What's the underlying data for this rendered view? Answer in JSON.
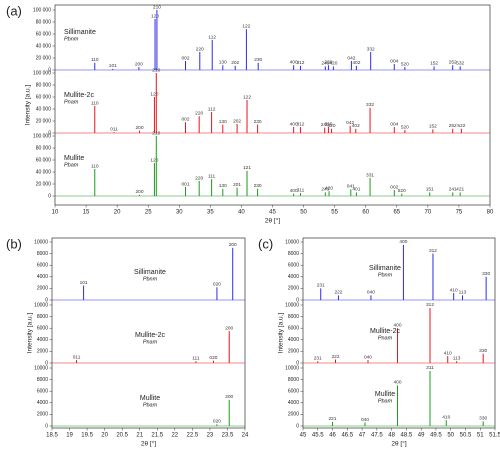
{
  "chart_data": [
    {
      "type": "peaks",
      "title": "(a)",
      "xlabel": "2θ [°]",
      "ylabel": "Intensity [a.u.]",
      "xlim": [
        10,
        80
      ],
      "xticks": [
        10,
        15,
        20,
        25,
        30,
        35,
        40,
        45,
        50,
        55,
        60,
        65,
        70,
        75,
        80
      ],
      "series": [
        {
          "name": "Sillimanite",
          "subtitle": "Pbnm",
          "color": "#2b2bf0",
          "ylim": [
            0,
            100000
          ],
          "yticks": [
            0,
            {
              "value": 20000,
              "label": "20 000"
            },
            {
              "value": 40000,
              "label": "40 000"
            },
            {
              "value": 60000,
              "label": "60 000"
            },
            {
              "value": 80000,
              "label": "80 000"
            },
            {
              "value": 100000,
              "label": "100 000"
            }
          ],
          "x": [
            16.4,
            19.3,
            23.5,
            26.1,
            26.4,
            31,
            33.3,
            35.3,
            37,
            39,
            40.8,
            42.7,
            48.4,
            49.5,
            53.5,
            54,
            54.8,
            57.7,
            58.5,
            60.8,
            64.6,
            66.3,
            71,
            74,
            75.2
          ],
          "values": [
            12000,
            2000,
            5000,
            85000,
            100000,
            15000,
            30000,
            50000,
            8000,
            7000,
            68000,
            12000,
            8000,
            7000,
            6000,
            8000,
            6000,
            15000,
            7000,
            30000,
            10000,
            5000,
            6000,
            8000,
            6000
          ],
          "labels": [
            "110",
            "101",
            "200",
            "120",
            "210",
            "002",
            "220",
            "112",
            "130",
            "202",
            "122",
            "230",
            "400",
            "312",
            "240",
            "330",
            "420",
            "042",
            "402",
            "332",
            "004",
            "520",
            "152",
            "252",
            "532"
          ]
        },
        {
          "name": "Mullite-2c",
          "subtitle": "Pnam",
          "color": "#e8141c",
          "ylim": [
            0,
            100000
          ],
          "yticks": [
            0,
            {
              "value": 20000,
              "label": "20 000"
            },
            {
              "value": 40000,
              "label": "40 000"
            },
            {
              "value": 60000,
              "label": "60 000"
            },
            {
              "value": 80000,
              "label": "80 000"
            },
            {
              "value": 100000,
              "label": "100 000"
            }
          ],
          "x": [
            16.4,
            19.5,
            23.6,
            26,
            26.3,
            31,
            33.2,
            35.2,
            37,
            39.3,
            40.9,
            42.6,
            48.4,
            49.5,
            53.4,
            54,
            54.5,
            57.5,
            58.4,
            60.7,
            64.6,
            66.3,
            70.8,
            74,
            75.4
          ],
          "values": [
            45000,
            1500,
            4000,
            60000,
            100000,
            18000,
            28000,
            35000,
            14000,
            15000,
            55000,
            14000,
            10000,
            10000,
            9000,
            10000,
            7000,
            12000,
            7000,
            42000,
            10000,
            5000,
            6000,
            7000,
            7000
          ],
          "labels": [
            "110",
            "011",
            "200",
            "120",
            "210",
            "002",
            "220",
            "112",
            "130",
            "202",
            "122",
            "230",
            "400",
            "312",
            "240",
            "330",
            "420",
            "042",
            "402",
            "332",
            "004",
            "520",
            "152",
            "252",
            "522"
          ]
        },
        {
          "name": "Mullite",
          "subtitle": "Pbam",
          "color": "#1a9a1a",
          "ylim": [
            0,
            100000
          ],
          "yticks": [
            0,
            {
              "value": 20000,
              "label": "20 000"
            },
            {
              "value": 40000,
              "label": "40 000"
            },
            {
              "value": 60000,
              "label": "60 000"
            },
            {
              "value": 80000,
              "label": "80 000"
            },
            {
              "value": 100000,
              "label": "100 000"
            }
          ],
          "x": [
            16.4,
            23.6,
            26,
            26.3,
            31,
            33.2,
            35.2,
            37,
            39.3,
            40.9,
            42.6,
            48.4,
            49.5,
            53.5,
            54.1,
            57.6,
            58.5,
            60.7,
            64.6,
            65.8,
            70.3,
            74,
            75.2
          ],
          "values": [
            45000,
            2000,
            55000,
            100000,
            15000,
            25000,
            28000,
            12000,
            14000,
            42000,
            12000,
            4000,
            5000,
            6000,
            8000,
            11000,
            6000,
            30000,
            10000,
            4000,
            6000,
            6000,
            6000
          ],
          "labels": [
            "110",
            "200",
            "120",
            "210",
            "001",
            "220",
            "111",
            "130",
            "201",
            "121",
            "230",
            "400",
            "311",
            "240",
            "420",
            "041",
            "401",
            "331",
            "002",
            "520",
            "151",
            "241",
            "421"
          ]
        }
      ]
    },
    {
      "type": "peaks",
      "title": "(b)",
      "xlabel": "2θ [°]",
      "ylabel": "Intensity [a.u.]",
      "xlim": [
        18.5,
        24
      ],
      "xticks": [
        18.5,
        19,
        19.5,
        20,
        20.5,
        21,
        21.5,
        22,
        22.5,
        23,
        23.5,
        24
      ],
      "series": [
        {
          "name": "Sillimanite",
          "subtitle": "Pbnm",
          "color": "#2b2bf0",
          "ylim": [
            0,
            10000
          ],
          "yticks": [
            0,
            2000,
            4000,
            6000,
            8000,
            10000
          ],
          "x": [
            19.4,
            23.2,
            23.65
          ],
          "values": [
            2500,
            2200,
            9000
          ],
          "labels": [
            "101",
            "020",
            "200"
          ]
        },
        {
          "name": "Mullite-2c",
          "subtitle": "Pnam",
          "color": "#e8141c",
          "ylim": [
            0,
            10000
          ],
          "yticks": [
            0,
            2000,
            4000,
            6000,
            8000,
            10000
          ],
          "x": [
            19.2,
            22.6,
            23.1,
            23.55
          ],
          "values": [
            500,
            300,
            400,
            5500
          ],
          "labels": [
            "011",
            "111",
            "020",
            "200"
          ]
        },
        {
          "name": "Mullite",
          "subtitle": "Pbam",
          "color": "#1a9a1a",
          "ylim": [
            0,
            10000
          ],
          "yticks": [
            0,
            2000,
            4000,
            6000,
            8000,
            10000
          ],
          "x": [
            23.2,
            23.55
          ],
          "values": [
            300,
            4500
          ],
          "labels": [
            "020",
            "200"
          ]
        }
      ]
    },
    {
      "type": "peaks",
      "title": "(c)",
      "xlabel": "2θ [°]",
      "ylabel": "Intensity [a.u.]",
      "xlim": [
        45,
        51.5
      ],
      "xticks": [
        45,
        45.5,
        46,
        46.5,
        47,
        47.5,
        48,
        48.5,
        49,
        49.5,
        50,
        50.5,
        51,
        51.5
      ],
      "series": [
        {
          "name": "Sillimanite",
          "subtitle": "Pbnm",
          "color": "#2b2bf0",
          "ylim": [
            0,
            10000
          ],
          "yticks": [
            0,
            2000,
            4000,
            6000,
            8000,
            10000
          ],
          "x": [
            45.6,
            46.2,
            47.3,
            48.4,
            49.4,
            50.1,
            50.4,
            51.2
          ],
          "values": [
            2000,
            800,
            800,
            9500,
            8000,
            1200,
            800,
            4000
          ],
          "labels": [
            "231",
            "222",
            "040",
            "400",
            "312",
            "410",
            "113",
            "330"
          ]
        },
        {
          "name": "Mullite-2c",
          "subtitle": "Pnam",
          "color": "#e8141c",
          "ylim": [
            0,
            10000
          ],
          "yticks": [
            0,
            2000,
            4000,
            6000,
            8000,
            10000
          ],
          "x": [
            45.5,
            46.1,
            47.2,
            48.2,
            49.3,
            49.9,
            50.2,
            51.1
          ],
          "values": [
            300,
            600,
            500,
            6000,
            9500,
            1200,
            300,
            1600
          ],
          "labels": [
            "231",
            "222",
            "040",
            "400",
            "312",
            "410",
            "113",
            "330"
          ]
        },
        {
          "name": "Mullite",
          "subtitle": "Pbam",
          "color": "#1a9a1a",
          "ylim": [
            0,
            10000
          ],
          "yticks": [
            0,
            2000,
            4000,
            6000,
            8000,
            10000
          ],
          "x": [
            46,
            47.1,
            48.2,
            49.3,
            49.85,
            51.1
          ],
          "values": [
            700,
            600,
            7000,
            9500,
            1000,
            800
          ],
          "labels": [
            "221",
            "040",
            "400",
            "311",
            "410",
            "330"
          ]
        }
      ]
    }
  ]
}
